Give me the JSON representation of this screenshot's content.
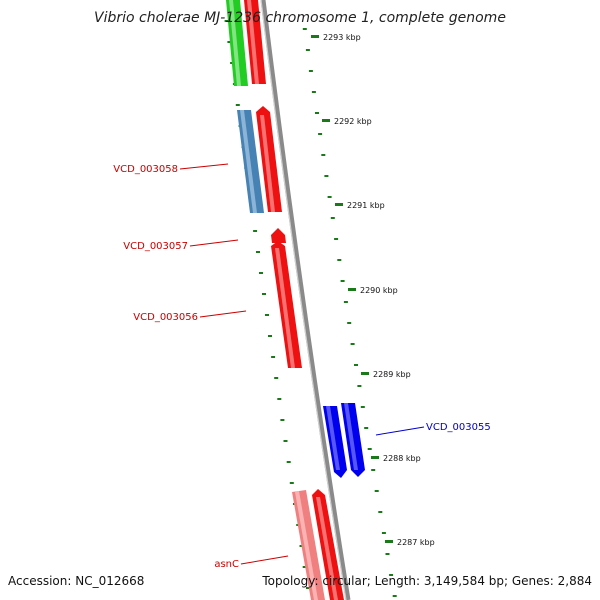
{
  "title": "Vibrio cholerae MJ-1236 chromosome 1, complete genome",
  "footer": {
    "accession": "Accession: NC_012668",
    "summary": "Topology: circular; Length: 3,149,584 bp; Genes: 2,884"
  },
  "colors": {
    "backbone": "#8a8a8a",
    "tick": "#1a7a1a",
    "label_red": "#cc0000",
    "label_blue": "#0000cc"
  },
  "scale_labels": [
    "2293 kbp",
    "2292 kbp",
    "2291 kbp",
    "2290 kbp",
    "2289 kbp",
    "2288 kbp",
    "2287 kbp"
  ],
  "gene_labels": [
    {
      "text": "VCD_003058",
      "color": "red"
    },
    {
      "text": "VCD_003057",
      "color": "red"
    },
    {
      "text": "VCD_003056",
      "color": "red"
    },
    {
      "text": "VCD_003055",
      "color": "blue"
    },
    {
      "text": "asnC",
      "color": "red"
    }
  ],
  "features": [
    {
      "name": "feature-green-top",
      "color": "#22cc22"
    },
    {
      "name": "feature-red-top",
      "color": "#ee1111"
    },
    {
      "name": "feature-steelblue",
      "color": "#4682b4"
    },
    {
      "name": "feature-red-2",
      "color": "#ee1111"
    },
    {
      "name": "feature-red-arrow-small",
      "color": "#ee1111"
    },
    {
      "name": "feature-red-long",
      "color": "#ee1111"
    },
    {
      "name": "feature-blue-1",
      "color": "#0000ee"
    },
    {
      "name": "feature-blue-2",
      "color": "#0000ee"
    },
    {
      "name": "feature-pink",
      "color": "#f08080"
    },
    {
      "name": "feature-red-bottom",
      "color": "#ee1111"
    }
  ]
}
